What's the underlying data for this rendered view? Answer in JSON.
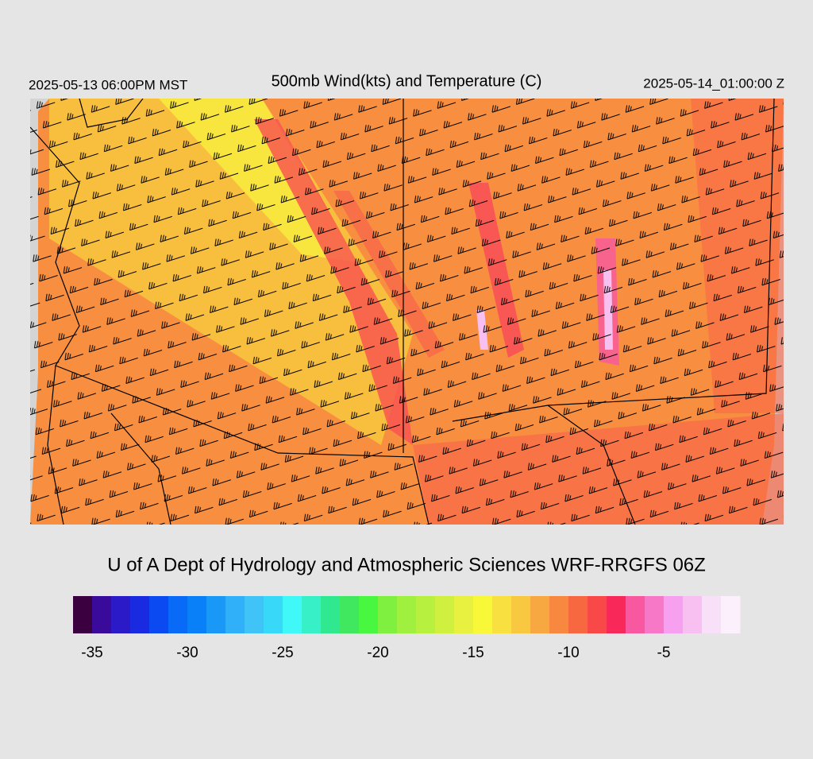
{
  "header": {
    "left": "2025-05-13 06:00PM MST",
    "title": "500mb Wind(kts) and Temperature (C)",
    "right": "2025-05-14_01:00:00 Z"
  },
  "credit": "U of A Dept of Hydrology and Atmospheric Sciences WRF-RRGFS 06Z",
  "colorbar": {
    "range": [
      -36,
      -1
    ],
    "colors": [
      "#3a0040",
      "#3a0a9a",
      "#2a1ac8",
      "#1a2ae0",
      "#0a4af0",
      "#0a6af8",
      "#0a80f8",
      "#1a98f8",
      "#30b0f8",
      "#40c4f8",
      "#38d8f8",
      "#40f8f8",
      "#38f0c8",
      "#30e890",
      "#40e860",
      "#48f840",
      "#80f040",
      "#a0f040",
      "#b8f040",
      "#d0f040",
      "#e8f040",
      "#f8f838",
      "#f8e040",
      "#f8c840",
      "#f8a840",
      "#f88840",
      "#f86840",
      "#f84848",
      "#f82858",
      "#f858a0",
      "#f878c8",
      "#f8a0f0",
      "#f8c0f0",
      "#f8e0f8",
      "#fcf0fc"
    ],
    "ticks": [
      -35,
      -30,
      -25,
      -20,
      -15,
      -10,
      -5
    ]
  }
}
